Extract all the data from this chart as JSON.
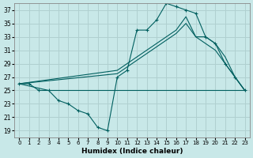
{
  "background_color": "#c8e8e8",
  "grid_color": "#b0d0d0",
  "line_color": "#005f5f",
  "xlabel": "Humidex (Indice chaleur)",
  "ylim": [
    18,
    38
  ],
  "xlim": [
    -0.5,
    23.5
  ],
  "yticks": [
    19,
    21,
    23,
    25,
    27,
    29,
    31,
    33,
    35,
    37
  ],
  "xticks": [
    0,
    1,
    2,
    3,
    4,
    5,
    6,
    7,
    8,
    9,
    10,
    11,
    12,
    13,
    14,
    15,
    16,
    17,
    18,
    19,
    20,
    21,
    22,
    23
  ],
  "curve1_x": [
    0,
    1,
    2,
    3,
    4,
    5,
    6,
    7,
    8,
    9,
    10,
    11,
    12,
    13,
    14,
    15,
    16,
    17,
    18,
    19,
    20,
    21,
    22,
    23
  ],
  "curve1_y": [
    26,
    26,
    25,
    25,
    23.5,
    23,
    22,
    21.5,
    19.5,
    19,
    27,
    28,
    34,
    34,
    35.5,
    38,
    37.5,
    37,
    36.5,
    33,
    32,
    29,
    27,
    25
  ],
  "curve2_x": [
    0,
    10,
    11,
    12,
    13,
    14,
    15,
    16,
    17,
    18,
    19,
    20,
    21,
    22,
    23
  ],
  "curve2_y": [
    26,
    28,
    29,
    30,
    31,
    32,
    33,
    34,
    36,
    33,
    33,
    32,
    30,
    27,
    25
  ],
  "curve3_x": [
    0,
    10,
    11,
    12,
    13,
    14,
    15,
    16,
    17,
    18,
    19,
    20,
    21,
    22,
    23
  ],
  "curve3_y": [
    26,
    27.5,
    28.5,
    29.5,
    30.5,
    31.5,
    32.5,
    33.5,
    35,
    33,
    32,
    31,
    29,
    27,
    25
  ],
  "curve4_x": [
    0,
    3,
    4,
    5,
    6,
    7,
    8,
    9,
    10,
    11,
    12,
    13,
    14,
    15,
    16,
    17,
    18,
    19,
    20,
    21,
    22,
    23
  ],
  "curve4_y": [
    26,
    25,
    25,
    25,
    25,
    25,
    25,
    25,
    25,
    25,
    25,
    25,
    25,
    25,
    25,
    25,
    25,
    25,
    25,
    25,
    25,
    25
  ]
}
